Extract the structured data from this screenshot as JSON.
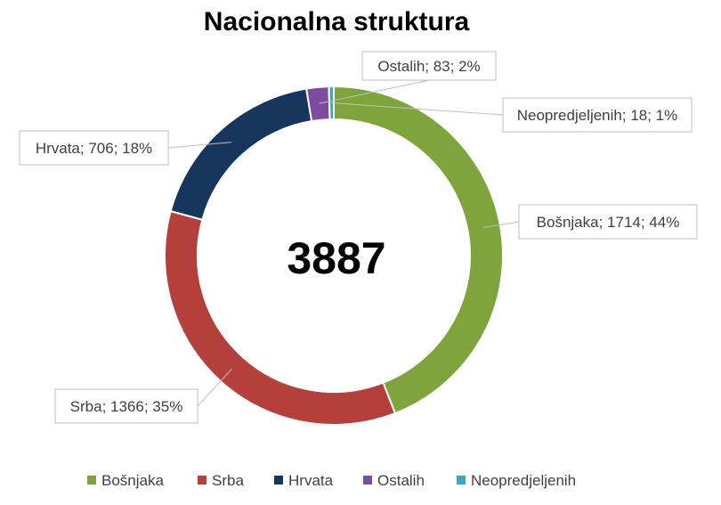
{
  "chart_data": {
    "type": "pie",
    "variant": "donut",
    "title": "Nacionalna struktura",
    "center_label": "3887",
    "total": 3887,
    "categories": [
      "Bošnjaka",
      "Srba",
      "Hrvata",
      "Ostalih",
      "Neopredjeljenih"
    ],
    "values": [
      1714,
      1366,
      706,
      83,
      18
    ],
    "percentages": [
      "44%",
      "35%",
      "18%",
      "2%",
      "1%"
    ],
    "colors": [
      "#7FA43B",
      "#B3403A",
      "#17365D",
      "#7D4C9E",
      "#3AA8C1"
    ],
    "data_labels": [
      "Bošnjaka; 1714; 44%",
      "Srba; 1366; 35%",
      "Hrvata; 706; 18%",
      "Ostalih; 83; 2%",
      "Neopredjeljenih; 18; 1%"
    ],
    "legend_position": "bottom"
  }
}
